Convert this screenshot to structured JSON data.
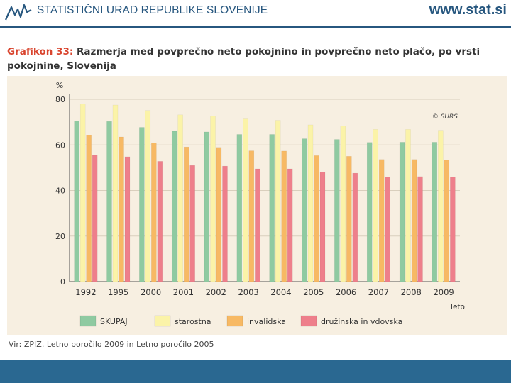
{
  "header": {
    "org_name": "STATISTIČNI URAD REPUBLIKE SLOVENIJE",
    "site_url": "www.stat.si"
  },
  "title": {
    "prefix": "Grafikon 33:",
    "text": " Razmerja med povprečno neto pokojnino in povprečno neto plačo, po vrsti pokojnine, Slovenija"
  },
  "source": "Vir: ZPIZ. Letno poročilo 2009 in Letno poročilo 2005",
  "colors": {
    "skupaj": "#8fcaa1",
    "starostna": "#fbf3a8",
    "invalidska": "#f7b964",
    "druzinska": "#ee7f8b",
    "grid": "#d9cfbd",
    "axis_text": "#333333"
  },
  "chart_data": {
    "type": "bar",
    "title": "Razmerja med povprečno neto pokojnino in povprečno neto plačo, po vrsti pokojnine, Slovenija",
    "xlabel": "leto",
    "ylabel": "%",
    "ylim": [
      0,
      80
    ],
    "yticks": [
      0,
      20,
      40,
      60,
      80
    ],
    "grid": true,
    "watermark": "© SURS",
    "categories": [
      "1992",
      "1995",
      "2000",
      "2001",
      "2002",
      "2003",
      "2004",
      "2005",
      "2006",
      "2007",
      "2008",
      "2009"
    ],
    "series": [
      {
        "name": "SKUPAJ",
        "values": [
          70.5,
          70.3,
          67.7,
          66.0,
          65.7,
          64.6,
          64.6,
          62.7,
          62.4,
          61.1,
          61.2,
          61.2
        ]
      },
      {
        "name": "starostna",
        "values": [
          78.0,
          77.5,
          75.1,
          73.2,
          72.7,
          71.4,
          70.8,
          68.8,
          68.4,
          66.8,
          66.8,
          66.4
        ]
      },
      {
        "name": "invalidska",
        "values": [
          64.2,
          63.5,
          60.8,
          59.1,
          58.9,
          57.4,
          57.3,
          55.3,
          55.0,
          53.6,
          53.6,
          53.3
        ]
      },
      {
        "name": "družinska in vdovska",
        "values": [
          55.4,
          54.8,
          52.8,
          51.0,
          50.7,
          49.5,
          49.5,
          48.1,
          47.6,
          45.9,
          46.1,
          45.9
        ]
      }
    ],
    "legend": [
      "SKUPAJ",
      "starostna",
      "invalidska",
      "družinska in vdovska"
    ],
    "legend_position": "bottom"
  }
}
